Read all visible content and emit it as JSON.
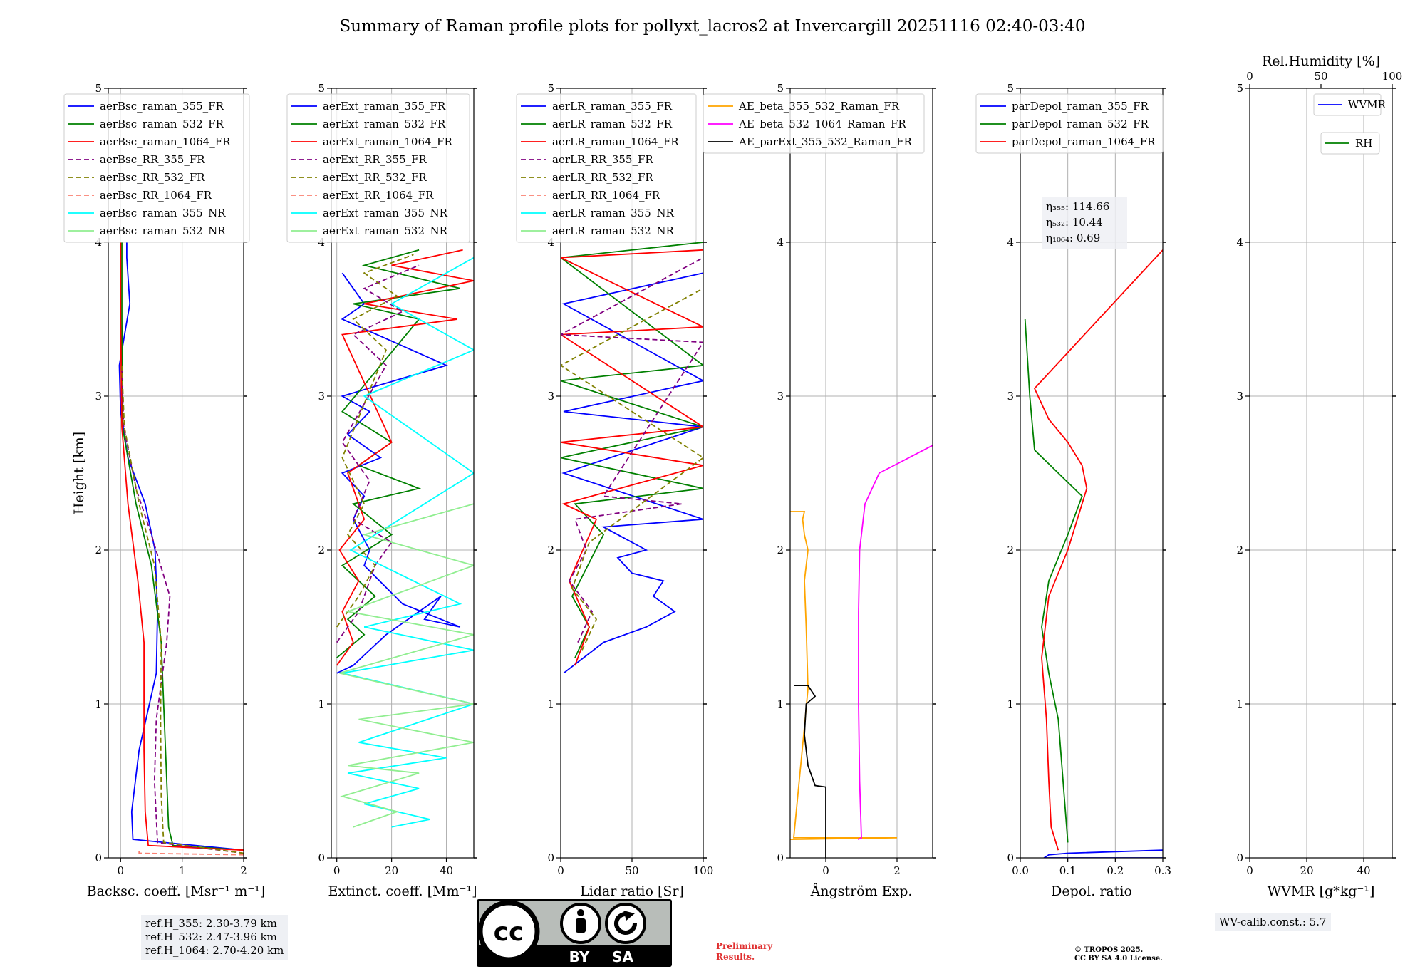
{
  "title": "Summary of Raman profile plots for pollyxt_lacros2 at Invercargill 20251116 02:40-03:40",
  "colors": {
    "blue": "#0000ff",
    "green": "#008000",
    "red": "#ff0000",
    "purple": "#800080",
    "olive": "#808000",
    "salmon": "#fa8072",
    "cyan": "#00ffff",
    "lightgreen": "#90ee90",
    "orange": "#ffa500",
    "magenta": "#ff00ff",
    "black": "#000000",
    "grid": "#b0b0b0"
  },
  "ref_heights": [
    "ref.H_355: 2.30-3.79 km",
    "ref.H_532: 2.47-3.96 km",
    "ref.H_1064: 2.70-4.20 km"
  ],
  "wv_calib": "WV-calib.const.: 5.7",
  "license": {
    "cc": "cc",
    "by": "BY",
    "sa": "SA"
  },
  "preliminary": [
    "Preliminary",
    "Results."
  ],
  "copyright": [
    "© TROPOS 2025.",
    "CC BY SA 4.0 License."
  ],
  "chart_data": [
    {
      "type": "line",
      "xlabel": "Backsc. coeff. [Msr⁻¹ m⁻¹]",
      "ylabel": "Height [km]",
      "xlim": [
        -0.2,
        2
      ],
      "ylim": [
        0,
        5
      ],
      "xticks": [
        0,
        1,
        2
      ],
      "yticks": [
        0,
        1,
        2,
        3,
        4,
        5
      ],
      "legend": "upper-left",
      "series": [
        {
          "name": "aerBsc_raman_355_FR",
          "color": "blue",
          "dash": "solid",
          "x": [
            2.0,
            0.2,
            0.18,
            0.3,
            0.58,
            0.6,
            0.56,
            0.4,
            0.12,
            0.0,
            -0.02,
            0.15,
            0.1,
            0.1
          ],
          "y": [
            0.05,
            0.12,
            0.3,
            0.7,
            1.2,
            1.6,
            2.0,
            2.3,
            2.6,
            2.9,
            3.2,
            3.6,
            3.9,
            4.0
          ]
        },
        {
          "name": "aerBsc_raman_532_FR",
          "color": "green",
          "dash": "solid",
          "x": [
            2.0,
            0.85,
            0.78,
            0.74,
            0.7,
            0.66,
            0.5,
            0.25,
            0.03,
            0.02,
            0.02
          ],
          "y": [
            0.05,
            0.08,
            0.2,
            0.6,
            1.0,
            1.4,
            1.9,
            2.3,
            2.8,
            3.5,
            4.0
          ]
        },
        {
          "name": "aerBsc_raman_1064_FR",
          "color": "red",
          "dash": "solid",
          "x": [
            2.0,
            0.45,
            0.4,
            0.38,
            0.38,
            0.28,
            0.12,
            0.02,
            0.0,
            0.0
          ],
          "y": [
            0.05,
            0.08,
            0.3,
            0.7,
            1.4,
            1.8,
            2.3,
            2.8,
            3.5,
            4.0
          ]
        },
        {
          "name": "aerBsc_RR_355_FR",
          "color": "purple",
          "dash": "dashed",
          "x": [
            2.0,
            0.6,
            0.55,
            0.58,
            0.75,
            0.8,
            0.5,
            0.25,
            0.05,
            0.02
          ],
          "y": [
            0.03,
            0.1,
            0.5,
            0.9,
            1.4,
            1.7,
            2.1,
            2.4,
            2.8,
            3.2
          ]
        },
        {
          "name": "aerBsc_RR_532_FR",
          "color": "olive",
          "dash": "dashed",
          "x": [
            2.0,
            0.7,
            0.66,
            0.65,
            0.66,
            0.55,
            0.3,
            0.06,
            0.02
          ],
          "y": [
            0.03,
            0.1,
            0.4,
            0.9,
            1.4,
            1.9,
            2.3,
            2.8,
            3.2
          ]
        },
        {
          "name": "aerBsc_RR_1064_FR",
          "color": "salmon",
          "dash": "dashed",
          "x": [
            2.0,
            0.3,
            0.3
          ],
          "y": [
            0.02,
            0.03,
            0.05
          ]
        },
        {
          "name": "aerBsc_raman_355_NR",
          "color": "cyan",
          "dash": "solid",
          "x": [],
          "y": []
        },
        {
          "name": "aerBsc_raman_532_NR",
          "color": "lightgreen",
          "dash": "solid",
          "x": [],
          "y": []
        }
      ]
    },
    {
      "type": "line",
      "xlabel": "Extinct. coeff. [Mm⁻¹]",
      "ylabel": "",
      "xlim": [
        -2,
        50
      ],
      "ylim": [
        0,
        5
      ],
      "xticks": [
        0,
        20,
        40
      ],
      "yticks": [
        0,
        1,
        2,
        3,
        4,
        5
      ],
      "legend": "upper-left",
      "series": [
        {
          "name": "aerExt_raman_355_FR",
          "color": "blue",
          "dash": "solid",
          "x": [
            0,
            6,
            12,
            18,
            22,
            30,
            38,
            32,
            45,
            24,
            10,
            12,
            6,
            10,
            2,
            16,
            4,
            12,
            2,
            40,
            2,
            10,
            2
          ],
          "y": [
            1.2,
            1.25,
            1.35,
            1.45,
            1.5,
            1.6,
            1.7,
            1.55,
            1.5,
            1.65,
            1.9,
            2.0,
            2.2,
            2.35,
            2.5,
            2.6,
            2.75,
            2.9,
            3.0,
            3.2,
            3.5,
            3.6,
            3.8
          ]
        },
        {
          "name": "aerExt_raman_532_FR",
          "color": "green",
          "dash": "solid",
          "x": [
            0,
            10,
            4,
            14,
            2,
            20,
            6,
            30,
            8,
            20,
            2,
            30,
            6,
            45,
            10,
            30
          ],
          "y": [
            1.3,
            1.45,
            1.55,
            1.7,
            1.9,
            2.1,
            2.3,
            2.4,
            2.55,
            2.7,
            2.9,
            3.5,
            3.6,
            3.7,
            3.85,
            3.95
          ]
        },
        {
          "name": "aerExt_raman_1064_FR",
          "color": "red",
          "dash": "solid",
          "x": [
            0,
            6,
            2,
            8,
            1,
            10,
            4,
            20,
            2,
            44,
            10,
            50,
            20,
            46
          ],
          "y": [
            1.25,
            1.4,
            1.6,
            1.8,
            2.0,
            2.2,
            2.5,
            2.7,
            3.4,
            3.5,
            3.6,
            3.75,
            3.85,
            3.95
          ]
        },
        {
          "name": "aerExt_RR_355_FR",
          "color": "purple",
          "dash": "dashed",
          "x": [
            0,
            8,
            14,
            20,
            6,
            12,
            2,
            18,
            6,
            24,
            10,
            30
          ],
          "y": [
            1.4,
            1.6,
            1.9,
            2.05,
            2.2,
            2.45,
            2.7,
            3.2,
            3.4,
            3.55,
            3.7,
            3.85
          ]
        },
        {
          "name": "aerExt_RR_532_FR",
          "color": "olive",
          "dash": "dashed",
          "x": [
            0,
            8,
            14,
            4,
            10,
            2,
            18,
            6,
            22,
            10,
            28
          ],
          "y": [
            1.5,
            1.7,
            1.9,
            2.1,
            2.3,
            2.6,
            3.3,
            3.5,
            3.65,
            3.8,
            3.92
          ]
        },
        {
          "name": "aerExt_RR_1064_FR",
          "color": "salmon",
          "dash": "dashed",
          "x": [],
          "y": []
        },
        {
          "name": "aerExt_raman_355_NR",
          "color": "cyan",
          "dash": "solid",
          "x": [
            20,
            34,
            10,
            30,
            4,
            40,
            8,
            50,
            2,
            50,
            10,
            45,
            5,
            50,
            10,
            50,
            20,
            50
          ],
          "y": [
            0.2,
            0.25,
            0.35,
            0.45,
            0.55,
            0.65,
            0.75,
            1.0,
            1.2,
            1.35,
            1.5,
            1.65,
            2.0,
            2.5,
            3.0,
            3.3,
            3.6,
            3.9
          ]
        },
        {
          "name": "aerExt_raman_532_NR",
          "color": "lightgreen",
          "dash": "solid",
          "x": [
            6,
            22,
            2,
            30,
            4,
            50,
            8,
            50,
            1,
            50,
            4,
            50,
            10,
            50
          ],
          "y": [
            0.2,
            0.3,
            0.4,
            0.55,
            0.6,
            0.75,
            0.9,
            1.0,
            1.2,
            1.45,
            1.6,
            1.9,
            2.1,
            2.3
          ]
        }
      ]
    },
    {
      "type": "line",
      "xlabel": "Lidar ratio [Sr]",
      "ylabel": "",
      "xlim": [
        0,
        100
      ],
      "ylim": [
        0,
        5
      ],
      "xticks": [
        0,
        50,
        100
      ],
      "yticks": [
        0,
        1,
        2,
        3,
        4,
        5
      ],
      "legend": "upper-left",
      "series": [
        {
          "name": "aerLR_raman_355_FR",
          "color": "blue",
          "dash": "solid",
          "x": [
            2,
            30,
            60,
            80,
            65,
            72,
            50,
            40,
            60,
            30,
            100,
            2,
            100,
            2,
            100,
            2,
            100
          ],
          "y": [
            1.2,
            1.4,
            1.5,
            1.6,
            1.7,
            1.8,
            1.85,
            1.95,
            2.0,
            2.15,
            2.2,
            2.5,
            2.8,
            2.9,
            3.1,
            3.6,
            3.8
          ]
        },
        {
          "name": "aerLR_raman_532_FR",
          "color": "green",
          "dash": "solid",
          "x": [
            10,
            20,
            8,
            30,
            10,
            100,
            0,
            100,
            0,
            100,
            0,
            100
          ],
          "y": [
            1.3,
            1.5,
            1.7,
            2.1,
            2.3,
            2.4,
            2.6,
            2.8,
            3.1,
            3.2,
            3.9,
            4.0
          ]
        },
        {
          "name": "aerLR_raman_1064_FR",
          "color": "red",
          "dash": "solid",
          "x": [
            10,
            20,
            6,
            25,
            2,
            100,
            0,
            100,
            0,
            100,
            0,
            100
          ],
          "y": [
            1.25,
            1.5,
            1.8,
            2.2,
            2.3,
            2.55,
            2.7,
            2.8,
            3.4,
            3.45,
            3.9,
            3.95
          ]
        },
        {
          "name": "aerLR_RR_355_FR",
          "color": "purple",
          "dash": "dashed",
          "x": [
            12,
            22,
            6,
            18,
            10,
            85,
            30,
            100,
            0,
            100
          ],
          "y": [
            1.4,
            1.6,
            1.8,
            2.0,
            2.2,
            2.3,
            2.35,
            3.35,
            3.4,
            3.9
          ]
        },
        {
          "name": "aerLR_RR_532_FR",
          "color": "olive",
          "dash": "dashed",
          "x": [
            15,
            25,
            8,
            20,
            100,
            0,
            100
          ],
          "y": [
            1.35,
            1.55,
            1.75,
            2.05,
            2.6,
            3.2,
            3.7
          ]
        },
        {
          "name": "aerLR_RR_1064_FR",
          "color": "salmon",
          "dash": "dashed",
          "x": [],
          "y": []
        },
        {
          "name": "aerLR_raman_355_NR",
          "color": "cyan",
          "dash": "solid",
          "x": [],
          "y": []
        },
        {
          "name": "aerLR_raman_532_NR",
          "color": "lightgreen",
          "dash": "solid",
          "x": [],
          "y": []
        }
      ]
    },
    {
      "type": "line",
      "xlabel": "Ångström Exp.",
      "ylabel": "",
      "xlim": [
        -1,
        3
      ],
      "ylim": [
        0,
        5
      ],
      "xticks": [
        0,
        2
      ],
      "yticks": [
        0,
        1,
        2,
        3,
        4,
        5
      ],
      "legend": "upper-left",
      "series": [
        {
          "name": "AE_beta_355_532_Raman_FR",
          "color": "orange",
          "dash": "solid",
          "x": [
            -1,
            2.0,
            -0.9,
            -0.6,
            -0.5,
            -0.55,
            -0.6,
            -0.5,
            -0.6,
            -0.65,
            -0.6,
            -1.0
          ],
          "y": [
            0.12,
            0.13,
            0.13,
            0.85,
            1.1,
            1.5,
            1.8,
            2.0,
            2.1,
            2.2,
            2.25,
            2.25
          ]
        },
        {
          "name": "AE_beta_532_1064_Raman_FR",
          "color": "magenta",
          "dash": "solid",
          "x": [
            0.9,
            1.0,
            0.95,
            0.92,
            0.92,
            0.95,
            1.1,
            1.5,
            2.5,
            3.0
          ],
          "y": [
            0.12,
            0.13,
            0.5,
            1.0,
            1.6,
            2.0,
            2.3,
            2.5,
            2.62,
            2.68
          ]
        },
        {
          "name": "AE_parExt_355_532_Raman_FR",
          "color": "black",
          "dash": "solid",
          "x": [
            0,
            0,
            -0.3,
            -0.5,
            -0.6,
            -0.55,
            -0.3,
            -0.5,
            -0.9
          ],
          "y": [
            0,
            0.46,
            0.47,
            0.6,
            0.8,
            1.0,
            1.05,
            1.12,
            1.12
          ]
        }
      ]
    },
    {
      "type": "line",
      "xlabel": "Depol. ratio",
      "ylabel": "",
      "xlim": [
        0,
        0.3
      ],
      "ylim": [
        0,
        5
      ],
      "xticks": [
        0.0,
        0.1,
        0.2,
        0.3
      ],
      "yticks": [
        0,
        1,
        2,
        3,
        4,
        5
      ],
      "legend": "upper-left",
      "annotations": [
        "η₃₅₅: 114.66",
        "η₅₃₂: 10.44",
        "η₁₀₆₄: 0.69"
      ],
      "series": [
        {
          "name": "parDepol_raman_355_FR",
          "color": "blue",
          "dash": "solid",
          "x": [
            0.3,
            0.1,
            0.06,
            0.05,
            0.07,
            0.1,
            0.2,
            0.25,
            0.3
          ],
          "y": [
            0.05,
            0.03,
            0.02,
            0.0,
            0.0,
            0.0,
            0.0,
            0.0,
            0.0
          ]
        },
        {
          "name": "parDepol_raman_532_FR",
          "color": "green",
          "dash": "solid",
          "x": [
            0.1,
            0.09,
            0.08,
            0.06,
            0.045,
            0.06,
            0.1,
            0.13,
            0.08,
            0.03,
            0.02,
            0.01
          ],
          "y": [
            0.1,
            0.5,
            0.9,
            1.2,
            1.5,
            1.8,
            2.1,
            2.35,
            2.5,
            2.65,
            3.0,
            3.5
          ]
        },
        {
          "name": "parDepol_raman_1064_FR",
          "color": "red",
          "dash": "solid",
          "x": [
            0.08,
            0.065,
            0.06,
            0.055,
            0.045,
            0.06,
            0.1,
            0.14,
            0.13,
            0.1,
            0.06,
            0.03,
            0.3
          ],
          "y": [
            0.05,
            0.2,
            0.5,
            0.9,
            1.3,
            1.7,
            2.0,
            2.4,
            2.55,
            2.7,
            2.85,
            3.05,
            3.95
          ]
        }
      ]
    },
    {
      "type": "line",
      "xlabel": "WVMR [g*kg⁻¹]",
      "ylabel": "",
      "x2label": "Rel.Humidity [%]",
      "xlim": [
        0,
        50
      ],
      "x2lim": [
        0,
        100
      ],
      "ylim": [
        0,
        5
      ],
      "xticks": [
        0,
        20,
        40
      ],
      "x2ticks": [
        0,
        50,
        100
      ],
      "yticks": [
        0,
        1,
        2,
        3,
        4,
        5
      ],
      "legend": "upper-right",
      "series": [
        {
          "name": "WVMR",
          "color": "blue",
          "dash": "solid",
          "x": [],
          "y": []
        },
        {
          "name": "RH",
          "color": "green",
          "dash": "solid",
          "x": [],
          "y": []
        }
      ]
    }
  ]
}
